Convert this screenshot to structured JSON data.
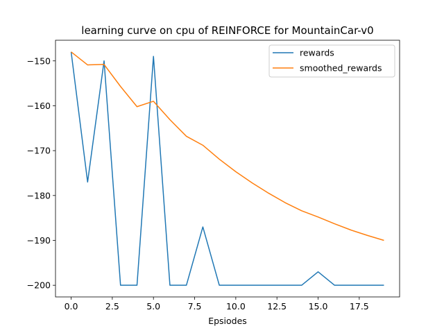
{
  "chart_data": {
    "type": "line",
    "title": "learning curve on cpu of REINFORCE for MountainCar-v0",
    "xlabel": "Epsiodes",
    "ylabel": "",
    "x": [
      0,
      1,
      2,
      3,
      4,
      5,
      6,
      7,
      8,
      9,
      10,
      11,
      12,
      13,
      14,
      15,
      16,
      17,
      18,
      19
    ],
    "xlim": [
      -0.95,
      19.95
    ],
    "ylim": [
      -202.6,
      -145.4
    ],
    "xticks": [
      0.0,
      2.5,
      5.0,
      7.5,
      10.0,
      12.5,
      15.0,
      17.5
    ],
    "xtick_labels": [
      "0.0",
      "2.5",
      "5.0",
      "7.5",
      "10.0",
      "12.5",
      "15.0",
      "17.5"
    ],
    "yticks": [
      -150,
      -160,
      -170,
      -180,
      -190,
      -200
    ],
    "ytick_labels": [
      "−150",
      "−160",
      "−170",
      "−180",
      "−190",
      "−200"
    ],
    "grid": false,
    "legend_position": "top-right",
    "series": [
      {
        "name": "rewards",
        "color": "#1f77b4",
        "values": [
          -148,
          -177,
          -150,
          -200,
          -200,
          -149,
          -200,
          -200,
          -187,
          -200,
          -200,
          -200,
          -200,
          -200,
          -200,
          -197,
          -200,
          -200,
          -200,
          -200
        ]
      },
      {
        "name": "smoothed_rewards",
        "color": "#ff7f0e",
        "values": [
          -148,
          -150.9,
          -150.8,
          -155.7,
          -160.2,
          -159.0,
          -163.1,
          -166.8,
          -168.8,
          -171.9,
          -174.7,
          -177.2,
          -179.5,
          -181.6,
          -183.4,
          -184.8,
          -186.3,
          -187.7,
          -188.9,
          -190.0
        ]
      }
    ]
  }
}
